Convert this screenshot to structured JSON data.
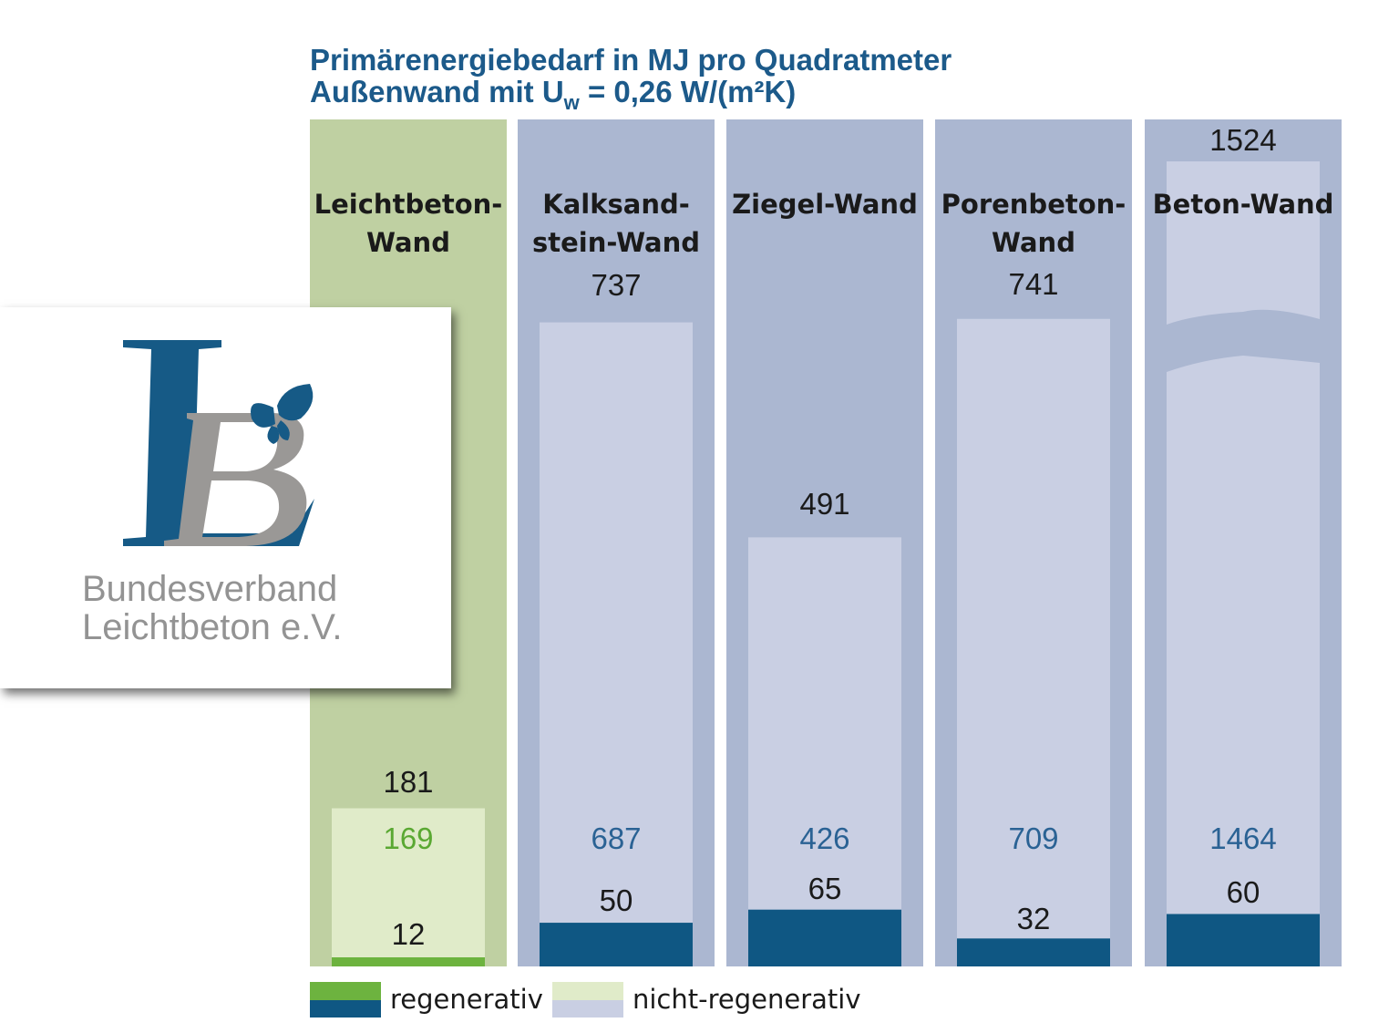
{
  "title_line1": "Primärenergiebedarf in MJ pro Quadratmeter",
  "title_line2_pre": "Außenwand mit U",
  "title_line2_sub": "w",
  "title_line2_post": " = 0,26 W/(m²K)",
  "logo": {
    "line1": "Bundesverband",
    "line2": "Leichtbeton e.V."
  },
  "legend": {
    "regenerativ": "regenerativ",
    "nicht_regenerativ": "nicht-regenerativ"
  },
  "colors": {
    "green_panel": "#bfd0a2",
    "blue_panel": "#abb7d1",
    "green_inner": "#e0ebc9",
    "blue_inner": "#c9cfe3",
    "green_base": "#6db33f",
    "blue_base": "#0f5783",
    "title": "#1c5a8a",
    "green_text": "#5aa832",
    "blue_text": "#2a6294"
  },
  "chart_data": {
    "type": "bar",
    "title": "Primärenergiebedarf in MJ pro Quadratmeter Außenwand mit Uw = 0,26 W/(m²K)",
    "categories": [
      [
        "Leichtbeton-",
        "Wand"
      ],
      [
        "Kalksand-",
        "stein-Wand"
      ],
      [
        "Ziegel-Wand"
      ],
      [
        "Porenbeton-",
        "Wand"
      ],
      [
        "Beton-Wand"
      ]
    ],
    "total": [
      181,
      737,
      491,
      741,
      1524
    ],
    "series": [
      {
        "name": "regenerativ",
        "values": [
          12,
          50,
          65,
          32,
          60
        ]
      },
      {
        "name": "nicht-regenerativ",
        "values": [
          169,
          687,
          426,
          709,
          1464
        ]
      }
    ],
    "broken_axis_bar": 4
  }
}
